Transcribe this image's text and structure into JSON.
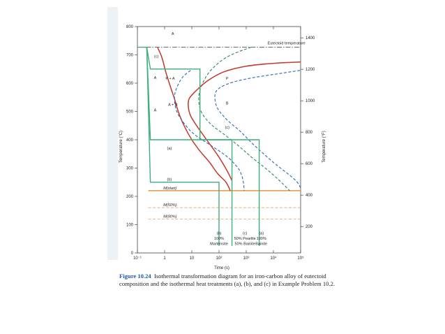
{
  "chart_data": {
    "type": "line",
    "title": "",
    "xlabel": "Time (s)",
    "ylabel_left": "Temperature (°C)",
    "ylabel_right": "Temperature (°F)",
    "x_scale": "log",
    "xlim": [
      0.1,
      100000
    ],
    "ylim": [
      0,
      800
    ],
    "x_ticks": [
      {
        "value": 0.1,
        "label": "10⁻¹"
      },
      {
        "value": 1,
        "label": "1"
      },
      {
        "value": 10,
        "label": "10"
      },
      {
        "value": 100,
        "label": "10²"
      },
      {
        "value": 1000,
        "label": "10³"
      },
      {
        "value": 10000,
        "label": "10⁴"
      },
      {
        "value": 100000,
        "label": "10⁵"
      }
    ],
    "y_ticks_left": [
      "0",
      "100",
      "200",
      "300",
      "400",
      "500",
      "600",
      "700",
      "800"
    ],
    "y_ticks_right": [
      {
        "value": 93.3,
        "label": "200"
      },
      {
        "value": 204.4,
        "label": "400"
      },
      {
        "value": 315.6,
        "label": "600"
      },
      {
        "value": 426.7,
        "label": "800"
      },
      {
        "value": 537.8,
        "label": "1000"
      },
      {
        "value": 648.9,
        "label": "1200"
      },
      {
        "value": 760,
        "label": "1400"
      }
    ],
    "grid": false,
    "series": [
      {
        "style": "solid",
        "color": "#c0392b",
        "points": [
          [
            0.55,
            727
          ],
          [
            0.8,
            690
          ],
          [
            1.1,
            640
          ],
          [
            1.6,
            590
          ],
          [
            2.3,
            545
          ],
          [
            3.3,
            495
          ],
          [
            5.5,
            445
          ],
          [
            10,
            400
          ],
          [
            20,
            360
          ],
          [
            45,
            320
          ],
          [
            90,
            280
          ],
          [
            180,
            250
          ],
          [
            260,
            220
          ]
        ]
      },
      {
        "style": "dashed",
        "color": "#2a6bb8",
        "points": [
          [
            9,
            645
          ],
          [
            4.5,
            620
          ],
          [
            2.7,
            580
          ],
          [
            2.3,
            545
          ],
          [
            2.8,
            500
          ],
          [
            5,
            460
          ],
          [
            12,
            420
          ],
          [
            50,
            380
          ],
          [
            200,
            340
          ],
          [
            500,
            300
          ],
          [
            700,
            270
          ],
          [
            800,
            245
          ],
          [
            850,
            220
          ]
        ]
      },
      {
        "style": "dashed",
        "color": "#2a8a5c",
        "points": [
          [
            1500,
            727
          ],
          [
            220,
            695
          ],
          [
            55,
            650
          ],
          [
            25,
            600
          ],
          [
            18,
            550
          ],
          [
            22,
            500
          ],
          [
            50,
            455
          ],
          [
            150,
            420
          ],
          [
            500,
            380
          ],
          [
            1500,
            340
          ],
          [
            5000,
            300
          ],
          [
            15000,
            260
          ],
          [
            40000,
            220
          ]
        ]
      },
      {
        "style": "dashed",
        "color": "#2a6bb8",
        "points": [
          [
            95000,
            645
          ],
          [
            20000,
            635
          ],
          [
            1500,
            618
          ],
          [
            250,
            600
          ],
          [
            90,
            578
          ],
          [
            70,
            550
          ],
          [
            90,
            510
          ],
          [
            200,
            470
          ],
          [
            600,
            430
          ],
          [
            2000,
            380
          ],
          [
            10000,
            320
          ],
          [
            60000,
            260
          ],
          [
            100000,
            230
          ]
        ]
      },
      {
        "style": "solid",
        "color": "#c0392b",
        "points": [
          [
            100000,
            675
          ],
          [
            10000,
            670
          ],
          [
            1000,
            660
          ],
          [
            150,
            640
          ],
          [
            40,
            610
          ],
          [
            15,
            575
          ],
          [
            8,
            545
          ],
          [
            7.5,
            515
          ],
          [
            9,
            485
          ],
          [
            15,
            450
          ],
          [
            35,
            400
          ],
          [
            90,
            345
          ],
          [
            200,
            290
          ],
          [
            300,
            255
          ]
        ]
      }
    ],
    "reference_lines": [
      {
        "label": "Eutectoid temperature",
        "y": 727,
        "style": "dash-dot"
      },
      {
        "label": "M(start)",
        "y": 220,
        "style": "solid",
        "color": "#e67e22"
      },
      {
        "label": "M(50%)",
        "y": 160,
        "style": "dashed",
        "color": "#e8a64c"
      },
      {
        "label": "M(90%)",
        "y": 120,
        "style": "dashed",
        "color": "#e8a64c"
      }
    ],
    "treatment_paths": [
      {
        "label": "(a)",
        "color": "#3fae7a",
        "points": [
          [
            0.1,
            727
          ],
          [
            0.22,
            727
          ],
          [
            0.3,
            400
          ],
          [
            3000,
            400
          ],
          [
            3000,
            25
          ]
        ]
      },
      {
        "label": "(b)",
        "color": "#3fae7a",
        "points": [
          [
            0.22,
            727
          ],
          [
            0.3,
            250
          ],
          [
            100,
            250
          ],
          [
            100,
            25
          ]
        ]
      },
      {
        "label": "(c)",
        "color": "#3fae7a",
        "points": [
          [
            0.22,
            727
          ],
          [
            0.3,
            650
          ],
          [
            20,
            650
          ],
          [
            20,
            400
          ],
          [
            300,
            400
          ],
          [
            300,
            25
          ]
        ]
      }
    ],
    "phase_labels": [
      "A",
      "P",
      "P + A",
      "A",
      "A + B",
      "B",
      "A",
      "(c)",
      "(c)",
      "(a)",
      "(b)"
    ],
    "bottom_annotations": [
      {
        "label": "(b)",
        "line2": "100%",
        "line3": "Martensite"
      },
      {
        "label": "(c)",
        "line2": "50% Pearlite",
        "line3": "50% Bainite"
      },
      {
        "label": "(a)",
        "line2": "100%",
        "line3": "Bainite"
      }
    ]
  },
  "caption": {
    "figure_label": "Figure 10.24",
    "text": "Isothermal transformation diagram for an iron-carbon alloy of eutectoid composition and the isothermal heat treatments (a), (b), and (c) in Example Problem 10.2."
  }
}
